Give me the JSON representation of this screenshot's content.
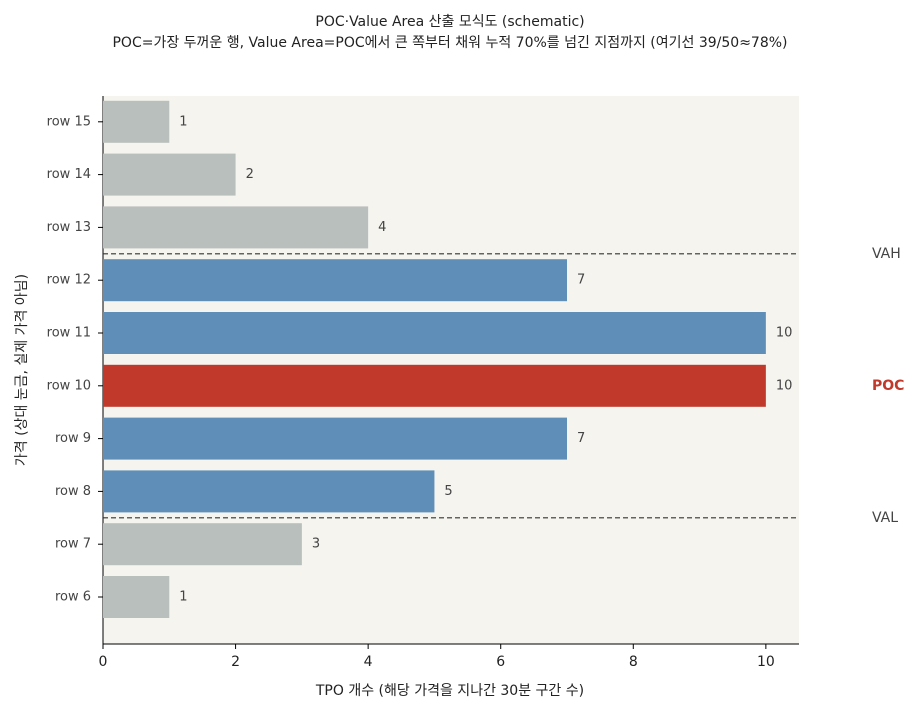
{
  "chart_data": {
    "type": "barh",
    "title": "POC·Value Area 산출 모식도 (schematic)",
    "subtitle": "POC=가장 두꺼운 행, Value Area=POC에서 큰 쪽부터 채워 누적 70%를 넘긴 지점까지 (여기선 39/50≈78%)",
    "x_label": "TPO 개수 (해당 가격을 지나간 30분 구간 수)",
    "y_label": "가격 (상대 눈금, 실제 가격 아님)",
    "categories": [
      "row 6",
      "row 7",
      "row 8",
      "row 9",
      "row 10",
      "row 11",
      "row 12",
      "row 13",
      "row 14",
      "row 15"
    ],
    "values": [
      1,
      3,
      5,
      7,
      10,
      10,
      7,
      4,
      2,
      1
    ],
    "colors": [
      "#b9bfbc",
      "#b9bfbc",
      "#5f8fb8",
      "#5f8fb8",
      "#c0392b",
      "#5f8fb8",
      "#5f8fb8",
      "#b9bfbc",
      "#b9bfbc",
      "#b9bfbc"
    ],
    "xlim": [
      0,
      10.5
    ],
    "xticks": [
      0,
      2,
      4,
      6,
      8,
      10
    ],
    "annotations": [
      {
        "text": "VAH",
        "category": "row 12",
        "color": "#444444"
      },
      {
        "text": "POC",
        "category": "row 10",
        "color": "#c0392b"
      },
      {
        "text": "VAL",
        "category": "row 8",
        "color": "#444444"
      }
    ]
  }
}
